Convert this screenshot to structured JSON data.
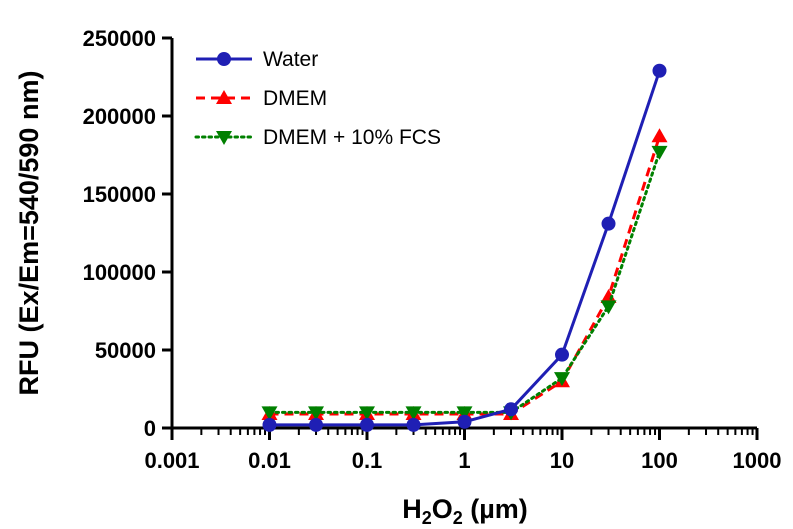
{
  "chart_data": {
    "type": "line",
    "x_scale": "log",
    "xlim": [
      0.001,
      1000
    ],
    "ylim": [
      0,
      250000
    ],
    "grid": false,
    "legend_position": "top-left",
    "xlabel": {
      "base": "H",
      "sub1": "2",
      "mid": "O",
      "sub2": "2",
      "unit": " (µm)"
    },
    "ylabel": "RFU (Ex/Em=540/590 nm)",
    "x_ticks": [
      0.001,
      0.01,
      0.1,
      1,
      10,
      100,
      1000
    ],
    "x_tick_labels": [
      "0.001",
      "0.01",
      "0.1",
      "1",
      "10",
      "100",
      "1000"
    ],
    "y_ticks": [
      0,
      50000,
      100000,
      150000,
      200000,
      250000
    ],
    "y_tick_labels": [
      "0",
      "50000",
      "100000",
      "150000",
      "200000",
      "250000"
    ],
    "x": [
      0.01,
      0.03,
      0.1,
      0.3,
      1,
      3,
      10,
      30,
      100
    ],
    "series": [
      {
        "name": "Water",
        "color": "#1f1fb4",
        "marker": "circle",
        "line": "solid",
        "values": [
          2000,
          2000,
          2000,
          2000,
          4000,
          12000,
          47000,
          131000,
          229000
        ]
      },
      {
        "name": "DMEM",
        "color": "#ff0000",
        "marker": "triangle-up",
        "line": "dashed",
        "values": [
          9000,
          9000,
          9000,
          9000,
          9000,
          9000,
          30000,
          84000,
          187000
        ]
      },
      {
        "name": "DMEM + 10% FCS",
        "color": "#008000",
        "marker": "triangle-down",
        "line": "dotted",
        "values": [
          10000,
          10000,
          10000,
          10000,
          10000,
          10000,
          32000,
          78000,
          177000
        ]
      }
    ]
  }
}
